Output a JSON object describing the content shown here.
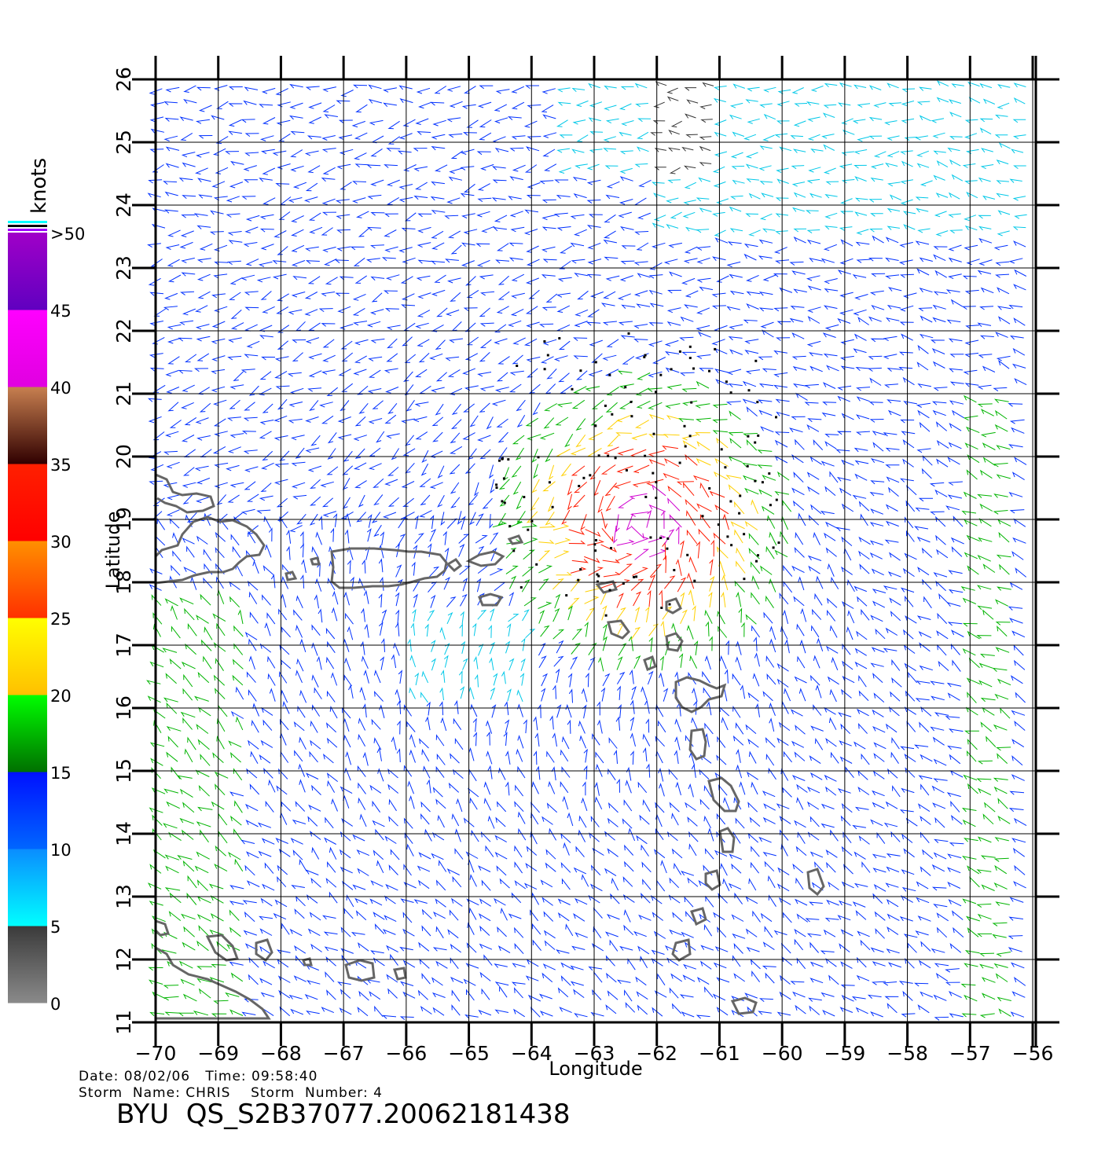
{
  "map": {
    "xlabel": "Longitude",
    "ylabel": "Latitude",
    "x_ticks": [
      -70,
      -69,
      -68,
      -67,
      -66,
      -65,
      -64,
      -63,
      -62,
      -61,
      -60,
      -59,
      -58,
      -57,
      -56
    ],
    "y_ticks": [
      11,
      12,
      13,
      14,
      15,
      16,
      17,
      18,
      19,
      20,
      21,
      22,
      23,
      24,
      25,
      26
    ],
    "x_tick_labels": [
      "−70",
      "−69",
      "−68",
      "−67",
      "−66",
      "−65",
      "−64",
      "−63",
      "−62",
      "−61",
      "−60",
      "−59",
      "−58",
      "−57",
      "−56"
    ],
    "y_tick_labels": [
      "11",
      "12",
      "13",
      "14",
      "15",
      "16",
      "17",
      "18",
      "19",
      "20",
      "21",
      "22",
      "23",
      "24",
      "25",
      "26"
    ],
    "lon_range": [
      -70,
      -55.95
    ],
    "lat_range": [
      11,
      26
    ],
    "storm_center": {
      "lon": -62.2,
      "lat": 18.9
    },
    "land_color": "#666666",
    "rain_flag_color": "#000000"
  },
  "colorbar": {
    "unit_label": "knots",
    "labels": [
      "0",
      "5",
      "10",
      "15",
      "20",
      "25",
      "30",
      "35",
      "40",
      "45",
      ">50"
    ],
    "bands": [
      {
        "range": [
          0,
          5
        ],
        "top": "#3a3a3a",
        "bottom": "#8a8a8a"
      },
      {
        "range": [
          5,
          10
        ],
        "top": "#0a8cff",
        "bottom": "#00ffff"
      },
      {
        "range": [
          10,
          15
        ],
        "top": "#0010ff",
        "bottom": "#0066ff"
      },
      {
        "range": [
          15,
          20
        ],
        "top": "#00ff00",
        "bottom": "#007000"
      },
      {
        "range": [
          20,
          25
        ],
        "top": "#ffff00",
        "bottom": "#ffc000"
      },
      {
        "range": [
          25,
          30
        ],
        "top": "#ff9000",
        "bottom": "#ff3000"
      },
      {
        "range": [
          30,
          35
        ],
        "top": "#ff2000",
        "bottom": "#ff0000"
      },
      {
        "range": [
          35,
          40
        ],
        "top": "#c88050",
        "bottom": "#300000"
      },
      {
        "range": [
          40,
          45
        ],
        "top": "#ff00ff",
        "bottom": "#e000e0"
      },
      {
        "range": [
          45,
          50
        ],
        "top": "#a000c8",
        "bottom": "#6000c0"
      }
    ],
    "legend_swatches": [
      "#00ffff",
      "#000000",
      "#a000ff"
    ]
  },
  "vector_colors": {
    "calm": "#333333",
    "light": "#00c8e8",
    "moderate": "#0030ff",
    "fresh": "#00b400",
    "strong": "#ffd000",
    "gale": "#ff1a00",
    "storm": "#d000d0"
  },
  "footer": {
    "line1": "Date: 08/02/06   Time: 09:58:40",
    "line2": "Storm  Name: CHRIS    Storm  Number: 4",
    "title": "BYU  QS_S2B37077.20062181438"
  }
}
